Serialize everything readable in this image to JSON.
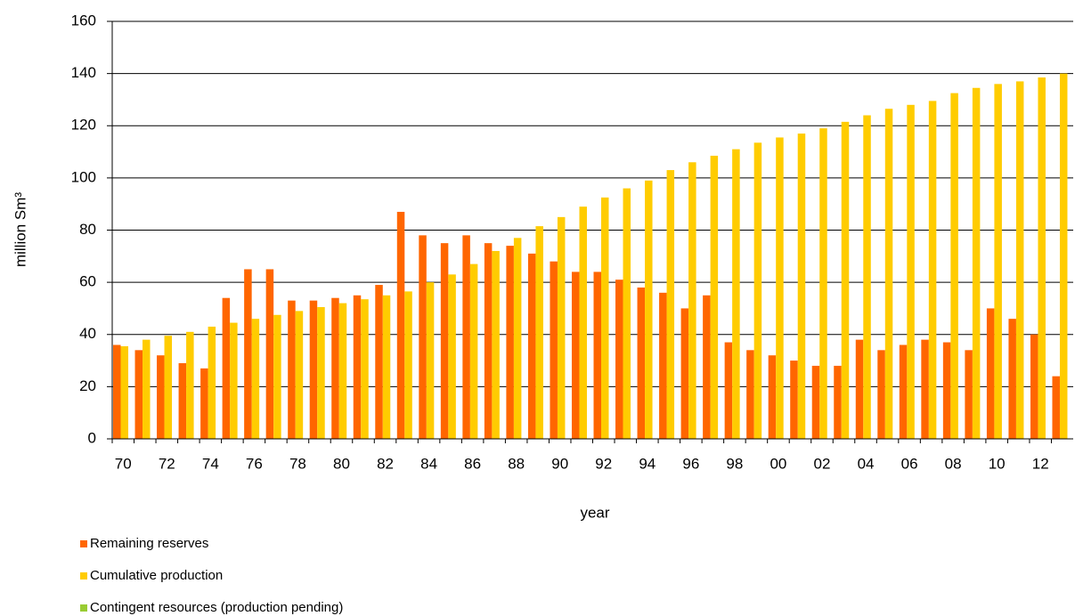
{
  "chart_data": {
    "type": "bar",
    "x_label": "year",
    "y_label": "million Sm³",
    "categories": [
      "70",
      null,
      "72",
      null,
      "74",
      null,
      "76",
      null,
      "78",
      null,
      "80",
      null,
      "82",
      null,
      "84",
      null,
      "86",
      null,
      "88",
      null,
      "90",
      null,
      "92",
      null,
      "94",
      null,
      "96",
      null,
      "98",
      null,
      "00",
      null,
      "02",
      null,
      "04",
      null,
      "06",
      null,
      "08",
      null,
      "10",
      null,
      "12",
      null
    ],
    "series": [
      {
        "name": "Remaining reserves",
        "color": "#ff6600",
        "values": [
          36,
          34,
          32,
          29,
          27,
          54,
          65,
          65,
          53,
          53,
          54,
          55,
          59,
          87,
          78,
          75,
          78,
          75,
          74,
          71,
          68,
          64,
          64,
          61,
          58,
          56,
          50,
          55,
          37,
          34,
          32,
          30,
          28,
          28,
          38,
          34,
          36,
          38,
          37,
          34,
          50,
          46,
          40,
          24
        ]
      },
      {
        "name": "Cumulative production",
        "color": "#ffcc00",
        "values": [
          35.5,
          38,
          39.5,
          41,
          43,
          44.5,
          46,
          47.5,
          49,
          50.5,
          52,
          53.5,
          55,
          56.5,
          60,
          63,
          67,
          72,
          77,
          81.5,
          85,
          89,
          92.5,
          96,
          99,
          103,
          106,
          108.5,
          111,
          113.5,
          115.5,
          117,
          119,
          121.5,
          124,
          126.5,
          128,
          129.5,
          132.5,
          134.5,
          136,
          137,
          138.5,
          140
        ]
      },
      {
        "name": "Contingent resources (production pending)",
        "color": "#99cc33",
        "values": [
          null,
          null,
          null,
          null,
          null,
          null,
          null,
          null,
          null,
          null,
          null,
          null,
          null,
          null,
          null,
          null,
          null,
          null,
          null,
          null,
          null,
          null,
          null,
          null,
          null,
          null,
          null,
          null,
          null,
          null,
          null,
          null,
          null,
          null,
          null,
          null,
          null,
          null,
          null,
          null,
          null,
          null,
          null,
          null
        ]
      }
    ],
    "ylim": [
      0,
      160
    ],
    "yticks": [
      0,
      20,
      40,
      60,
      80,
      100,
      120,
      140,
      160
    ],
    "grid": true,
    "legend": "bottom-left"
  }
}
